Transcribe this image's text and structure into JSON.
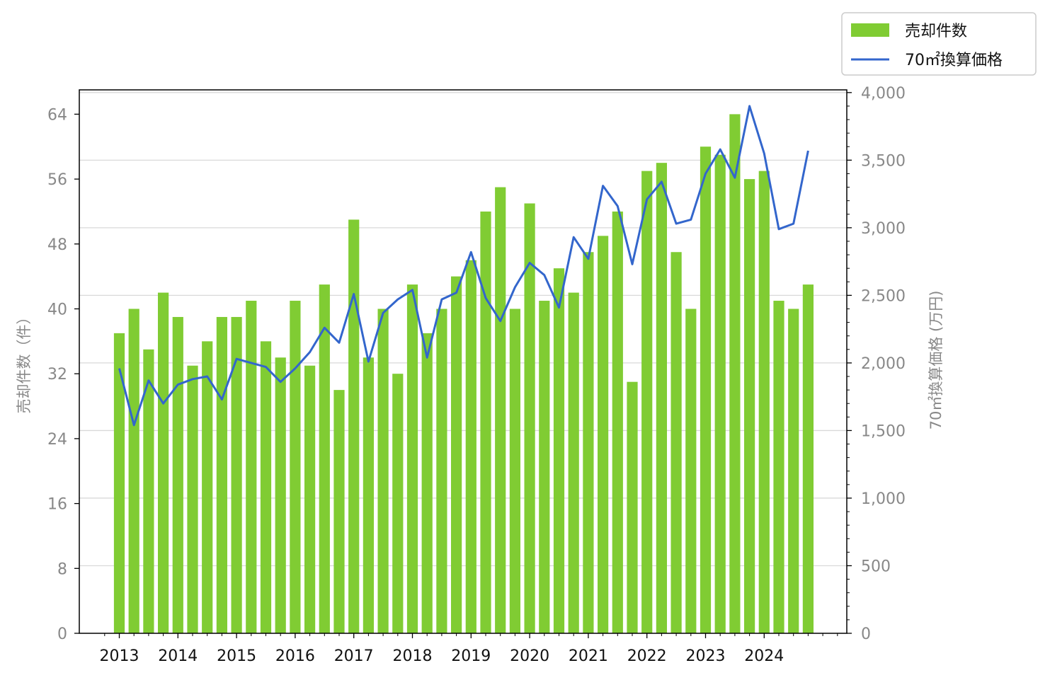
{
  "chart_data": {
    "type": "bar+line",
    "x_axis": {
      "tick_labels": [
        "2013",
        "2014",
        "2015",
        "2016",
        "2017",
        "2018",
        "2019",
        "2020",
        "2021",
        "2022",
        "2023",
        "2024"
      ],
      "start_year": 2013,
      "periods_per_year": 4
    },
    "y_left": {
      "label": "売却件数（件）",
      "min": 0,
      "max": 67,
      "ticks": [
        0,
        8,
        16,
        24,
        32,
        40,
        48,
        56,
        64
      ],
      "tick_labels": [
        "0",
        "8",
        "16",
        "24",
        "32",
        "40",
        "48",
        "56",
        "64"
      ]
    },
    "y_right": {
      "label": "70㎡換算価格 (万円)",
      "min": 0,
      "max": 4020,
      "ticks": [
        0,
        500,
        1000,
        1500,
        2000,
        2500,
        3000,
        3500,
        4000
      ],
      "tick_labels": [
        "0",
        "500",
        "1,000",
        "1,500",
        "2,000",
        "2,500",
        "3,000",
        "3,500",
        "4,000"
      ]
    },
    "grid": "horizontal (right axis)",
    "legend": {
      "position": "top-right outside",
      "entries": [
        "売却件数",
        "70㎡換算価格"
      ]
    },
    "series": [
      {
        "name": "売却件数",
        "type": "bar",
        "axis": "left",
        "color": "#80cc33",
        "values": [
          37,
          40,
          35,
          42,
          39,
          33,
          36,
          39,
          39,
          41,
          36,
          34,
          41,
          33,
          43,
          30,
          51,
          34,
          40,
          32,
          43,
          37,
          40,
          44,
          46,
          52,
          55,
          40,
          53,
          41,
          45,
          42,
          47,
          49,
          52,
          31,
          57,
          58,
          47,
          40,
          60,
          59,
          64,
          56,
          57,
          41,
          40,
          43
        ]
      },
      {
        "name": "70㎡換算価格",
        "type": "line",
        "axis": "right",
        "color": "#3366cc",
        "values": [
          1960,
          1540,
          1870,
          1700,
          1840,
          1880,
          1900,
          1730,
          2030,
          2000,
          1970,
          1860,
          1960,
          2080,
          2260,
          2150,
          2510,
          2010,
          2370,
          2470,
          2540,
          2040,
          2470,
          2520,
          2820,
          2480,
          2310,
          2560,
          2740,
          2650,
          2410,
          2930,
          2770,
          3310,
          3160,
          2730,
          3210,
          3340,
          3030,
          3060,
          3400,
          3580,
          3370,
          3900,
          3550,
          2990,
          3030,
          3570
        ]
      }
    ]
  }
}
